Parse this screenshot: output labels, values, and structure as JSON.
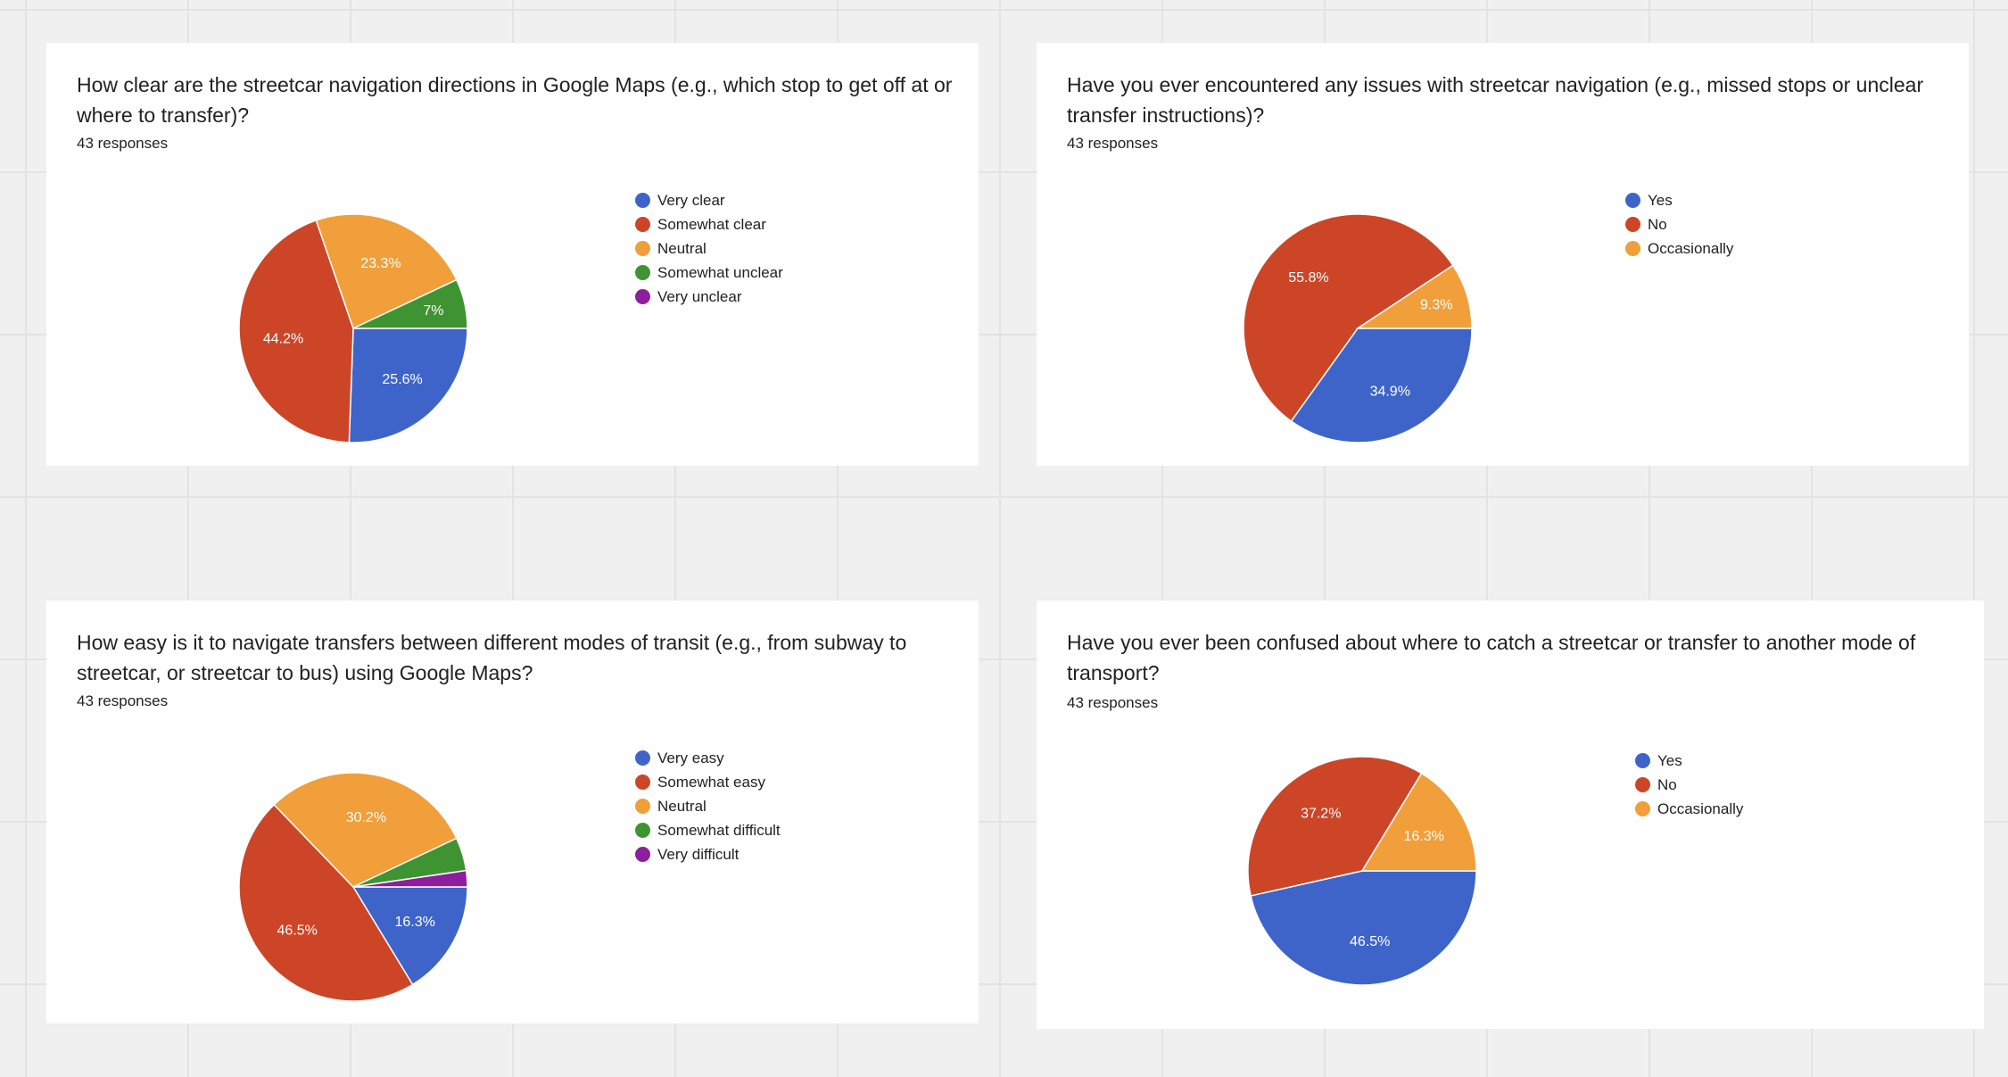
{
  "charts": [
    {
      "question": "How clear are the streetcar navigation directions in Google Maps (e.g., which stop to get off at or where to transfer)?",
      "responses": "43 responses"
    },
    {
      "question": "Have you ever encountered any issues with streetcar navigation (e.g., missed stops or unclear transfer instructions)?",
      "responses": "43 responses"
    },
    {
      "question": "How easy is it to navigate transfers between different modes of transit (e.g., from subway to streetcar, or streetcar to bus) using Google Maps?",
      "responses": "43 responses"
    },
    {
      "question": "Have you ever been confused about where to catch a streetcar or transfer to another mode of transport?",
      "responses": "43 responses"
    }
  ],
  "chart_data": [
    {
      "type": "pie",
      "title": "How clear are the streetcar navigation directions in Google Maps (e.g., which stop to get off at or where to transfer)?",
      "categories": [
        "Very clear",
        "Somewhat clear",
        "Neutral",
        "Somewhat unclear",
        "Very unclear"
      ],
      "values": [
        25.6,
        44.2,
        23.3,
        7.0,
        0.0
      ],
      "labels": [
        "25.6%",
        "44.2%",
        "23.3%",
        "7%",
        ""
      ],
      "colors": [
        "#3e64c9",
        "#cd4527",
        "#f19f3a",
        "#3f9432",
        "#8d1e9e"
      ],
      "legend": "right"
    },
    {
      "type": "pie",
      "title": "Have you ever encountered any issues with streetcar navigation (e.g., missed stops or unclear transfer instructions)?",
      "categories": [
        "Yes",
        "No",
        "Occasionally"
      ],
      "values": [
        34.9,
        55.8,
        9.3
      ],
      "labels": [
        "34.9%",
        "55.8%",
        "9.3%"
      ],
      "colors": [
        "#3e64c9",
        "#cd4527",
        "#f19f3a"
      ],
      "legend": "right"
    },
    {
      "type": "pie",
      "title": "How easy is it to navigate transfers between different modes of transit (e.g., from subway to streetcar, or streetcar to bus) using Google Maps?",
      "categories": [
        "Very easy",
        "Somewhat easy",
        "Neutral",
        "Somewhat difficult",
        "Very difficult"
      ],
      "values": [
        16.3,
        46.5,
        30.2,
        4.7,
        2.3
      ],
      "labels": [
        "16.3%",
        "46.5%",
        "30.2%",
        "",
        ""
      ],
      "colors": [
        "#3e64c9",
        "#cd4527",
        "#f19f3a",
        "#3f9432",
        "#8d1e9e"
      ],
      "legend": "right"
    },
    {
      "type": "pie",
      "title": "Have you ever been confused about where to catch a streetcar or transfer to another mode of transport?",
      "categories": [
        "Yes",
        "No",
        "Occasionally"
      ],
      "values": [
        46.5,
        37.2,
        16.3
      ],
      "labels": [
        "46.5%",
        "37.2%",
        "16.3%"
      ],
      "colors": [
        "#3e64c9",
        "#cd4527",
        "#f19f3a"
      ],
      "legend": "right"
    }
  ]
}
